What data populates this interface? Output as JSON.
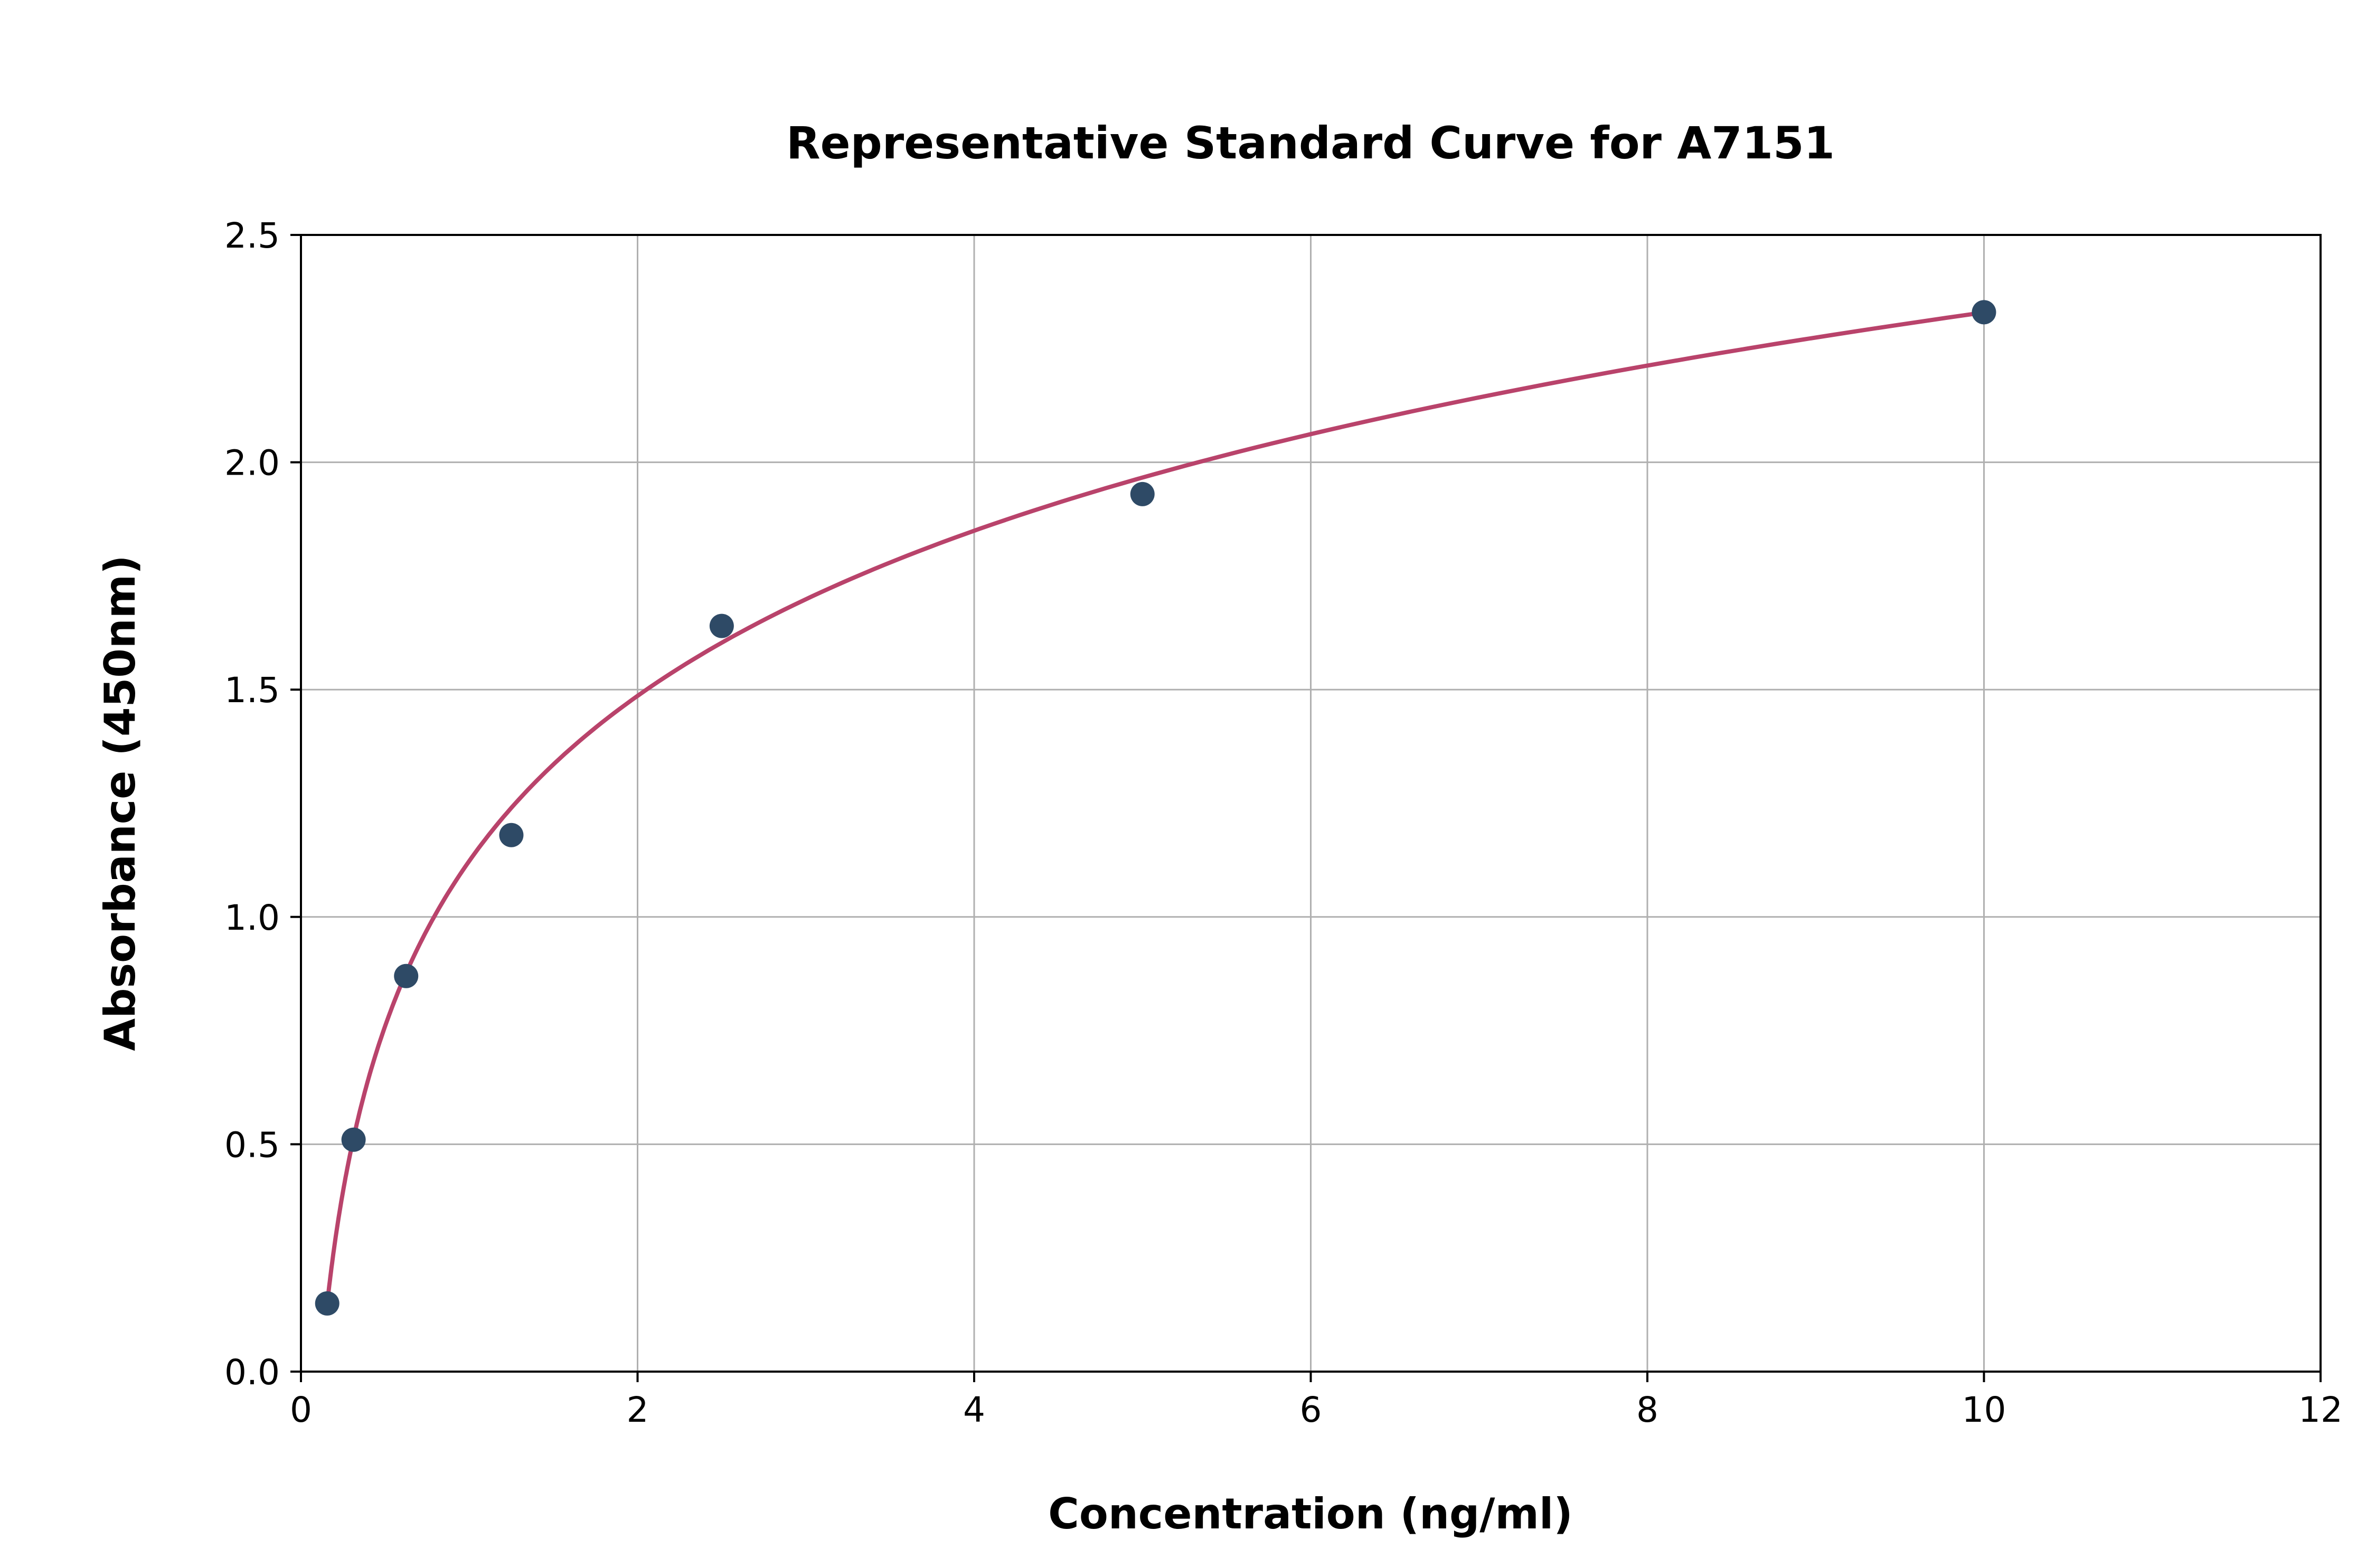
{
  "chart_data": {
    "type": "scatter",
    "title": "Representative Standard Curve for A7151",
    "xlabel": "Concentration (ng/ml)",
    "ylabel": "Absorbance (450nm)",
    "xlim": [
      0,
      12
    ],
    "ylim": [
      0,
      2.5
    ],
    "x_ticks": [
      0,
      2,
      4,
      6,
      8,
      10,
      12
    ],
    "x_tick_labels": [
      "0",
      "2",
      "4",
      "6",
      "8",
      "10",
      "12"
    ],
    "y_ticks": [
      0.0,
      0.5,
      1.0,
      1.5,
      2.0,
      2.5
    ],
    "y_tick_labels": [
      "0.0",
      "0.5",
      "1.0",
      "1.5",
      "2.0",
      "2.5"
    ],
    "grid": true,
    "legend": "none",
    "points": [
      {
        "x": 0.156,
        "y": 0.15
      },
      {
        "x": 0.3125,
        "y": 0.51
      },
      {
        "x": 0.625,
        "y": 0.87
      },
      {
        "x": 1.25,
        "y": 1.18
      },
      {
        "x": 2.5,
        "y": 1.64
      },
      {
        "x": 5.0,
        "y": 1.93
      },
      {
        "x": 10.0,
        "y": 2.33
      }
    ],
    "fit_curve": {
      "model": "logarithmic",
      "equation": "y = a + b*ln(x)",
      "a": 1.123,
      "b": 0.524,
      "x_start": 0.156,
      "x_end": 10.0
    },
    "colors": {
      "curve": "#b9436b",
      "points": "#2e4a66",
      "grid": "#b0b0b0",
      "axis": "#000000",
      "background": "#ffffff"
    }
  }
}
